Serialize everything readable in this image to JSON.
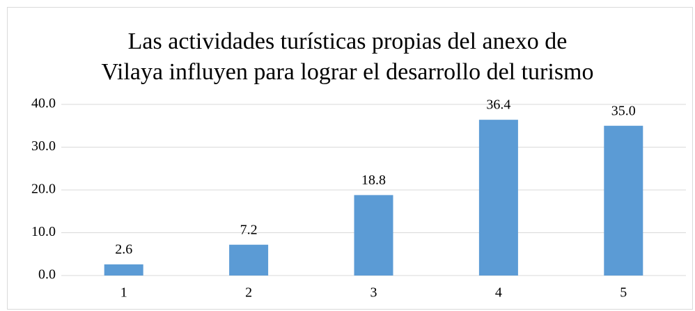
{
  "chart_data": {
    "type": "bar",
    "title": [
      "Las actividades turísticas  propias del anexo de",
      "Vilaya influyen para lograr el desarrollo del turismo"
    ],
    "categories": [
      "1",
      "2",
      "3",
      "4",
      "5"
    ],
    "values": [
      2.6,
      7.2,
      18.8,
      36.4,
      35.0
    ],
    "value_labels": [
      "2.6",
      "7.2",
      "18.8",
      "36.4",
      "35.0"
    ],
    "color": "#5b9bd5",
    "ylim": [
      0,
      40
    ],
    "yticks": [
      {
        "value": 0,
        "label": "0.0"
      },
      {
        "value": 10,
        "label": "10.0"
      },
      {
        "value": 20,
        "label": "20.0"
      },
      {
        "value": 30,
        "label": "30.0"
      },
      {
        "value": 40,
        "label": "40.0"
      }
    ],
    "grid": true
  }
}
